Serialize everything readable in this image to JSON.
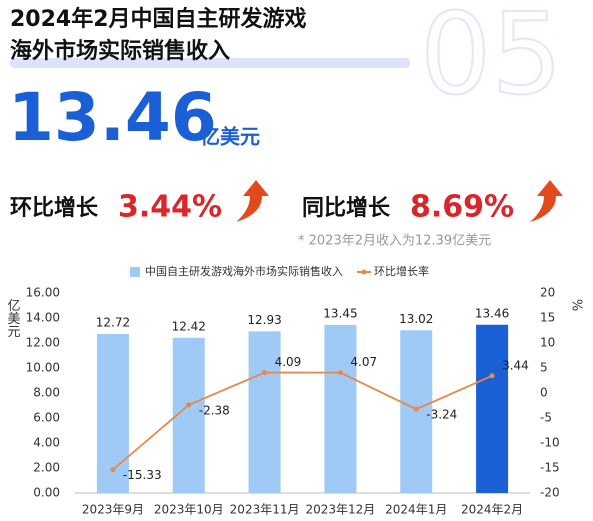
{
  "header": {
    "title_line1": "2024年2月中国自主研发游戏",
    "title_line2": "海外市场实际销售收入",
    "watermark": "05",
    "revenue": "13.46",
    "revenue_unit": "亿美元",
    "mom_label": "环比增长",
    "mom_value": "3.44%",
    "yoy_label": "同比增长",
    "yoy_value": "8.69%",
    "note": "* 2023年2月收入为12.39亿美元"
  },
  "chart_data": {
    "type": "bar",
    "categories": [
      "2023年9月",
      "2023年10月",
      "2023年11月",
      "2023年12月",
      "2024年1月",
      "2024年2月"
    ],
    "series": [
      {
        "name": "中国自主研发游戏海外市场实际销售收入",
        "type": "bar",
        "color": "#9fcaf6",
        "colors": [
          "#9fcaf6",
          "#9fcaf6",
          "#9fcaf6",
          "#9fcaf6",
          "#9fcaf6",
          "#1a5fd6"
        ],
        "values": [
          12.72,
          12.42,
          12.93,
          13.45,
          13.02,
          13.46
        ]
      },
      {
        "name": "环比增长率",
        "type": "line",
        "axis": "y2",
        "color": "#e8874a",
        "values": [
          -15.33,
          -2.38,
          4.09,
          4.07,
          -3.24,
          3.44
        ]
      }
    ],
    "ylabel": "亿美元",
    "y2label": "%",
    "ylim": [
      0,
      16
    ],
    "yticks": [
      {
        "value": 0,
        "label": "0.00"
      },
      {
        "value": 2,
        "label": "2.00"
      },
      {
        "value": 4,
        "label": "4.00"
      },
      {
        "value": 6,
        "label": "6.00"
      },
      {
        "value": 8,
        "label": "8.00"
      },
      {
        "value": 10,
        "label": "10.00"
      },
      {
        "value": 12,
        "label": "12.00"
      },
      {
        "value": 14,
        "label": "14.00"
      },
      {
        "value": 16,
        "label": "16.00"
      }
    ],
    "y2lim": [
      -20,
      20
    ],
    "y2ticks": [
      -20,
      -15,
      -10,
      -5,
      0,
      5,
      10,
      15,
      20
    ],
    "grid": false
  }
}
